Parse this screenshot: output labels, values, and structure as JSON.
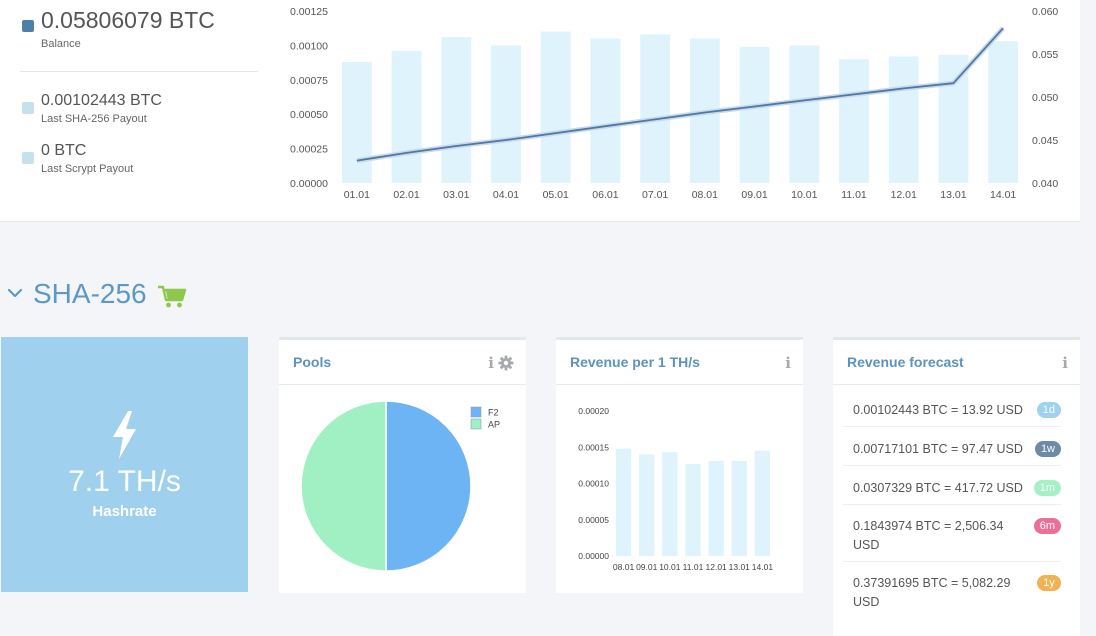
{
  "balance": {
    "value": "0.05806079 BTC",
    "label": "Balance",
    "color": "#4e7fa8"
  },
  "last_sha256_payout": {
    "value": "0.00102443 BTC",
    "label": "Last SHA-256 Payout",
    "color": "#c7e1ec"
  },
  "last_scrypt_payout": {
    "value": "0 BTC",
    "label": "Last Scrypt Payout",
    "color": "#c7e1ec"
  },
  "top_chart": {
    "chart_data": {
      "type": "bar+line",
      "categories": [
        "01.01",
        "02.01",
        "03.01",
        "04.01",
        "05.01",
        "06.01",
        "07.01",
        "08.01",
        "09.01",
        "10.01",
        "11.01",
        "12.01",
        "13.01",
        "14.01"
      ],
      "series": [
        {
          "values": [
            0.00088,
            0.00096,
            0.00106,
            0.001,
            0.0011,
            0.00105,
            0.00108,
            0.00105,
            0.00099,
            0.001,
            0.0009,
            0.00092,
            0.00093,
            0.00103
          ],
          "axis": "left",
          "kind": "bar",
          "color": "#def3fc"
        },
        {
          "values": [
            0.0426,
            0.0435,
            0.0443,
            0.045,
            0.0458,
            0.0466,
            0.0474,
            0.0482,
            0.0489,
            0.0496,
            0.0503,
            0.051,
            0.0516,
            0.058
          ],
          "axis": "right",
          "kind": "line",
          "color": "#4a78a8"
        }
      ],
      "left_ticks": [
        "0.00000",
        "0.00025",
        "0.00050",
        "0.00075",
        "0.00100",
        "0.00125"
      ],
      "right_ticks": [
        "0.040",
        "0.045",
        "0.050",
        "0.055",
        "0.060"
      ],
      "ylim_left": [
        0,
        0.00125
      ],
      "ylim_right": [
        0.04,
        0.06
      ]
    }
  },
  "section": {
    "title": "SHA-256",
    "chevron_icon": "chevron-down-icon",
    "cart_icon": "cart-icon",
    "cart_color": "#8cc84b"
  },
  "hashrate": {
    "value": "7.1 TH/s",
    "label": "Hashrate",
    "icon": "lightning-icon"
  },
  "pools": {
    "title": "Pools",
    "chart_data": {
      "type": "pie",
      "slices": [
        {
          "name": "F2",
          "value": 50,
          "color": "#6cb4f3"
        },
        {
          "name": "AP",
          "value": 50,
          "color": "#a0f0c4"
        }
      ]
    }
  },
  "revenue_per_ths": {
    "title": "Revenue per 1 TH/s",
    "chart_data": {
      "type": "bar",
      "categories": [
        "08.01",
        "09.01",
        "10.01",
        "11.01",
        "12.01",
        "13.01",
        "14.01"
      ],
      "values": [
        0.000148,
        0.00014,
        0.000143,
        0.000127,
        0.000131,
        0.000131,
        0.000145
      ],
      "ticks": [
        "0.00000",
        "0.00005",
        "0.00010",
        "0.00015",
        "0.00020"
      ],
      "ylim": [
        0,
        0.0002
      ],
      "color": "#def3fc"
    }
  },
  "forecast": {
    "title": "Revenue forecast",
    "rows": [
      {
        "text": "0.00102443 BTC = 13.92 USD",
        "badge": "1d",
        "color": "#9dd3ef"
      },
      {
        "text": "0.00717101 BTC = 97.47 USD",
        "badge": "1w",
        "color": "#6e8ba5"
      },
      {
        "text": "0.0307329 BTC = 417.72 USD",
        "badge": "1m",
        "color": "#a6f0c6"
      },
      {
        "text": "0.1843974 BTC = 2,506.34 USD",
        "badge": "6m",
        "color": "#ec6f95"
      },
      {
        "text": "0.37391695 BTC = 5,082.29 USD",
        "badge": "1y",
        "color": "#f2b152"
      }
    ]
  }
}
